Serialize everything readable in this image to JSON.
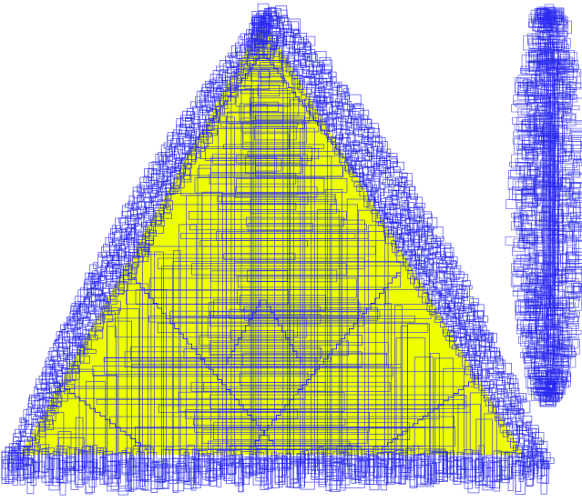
{
  "figure": {
    "colors": {
      "background": "#ffffff",
      "fill": "#eeff00",
      "outline": "#2a2af0"
    },
    "shapes": [
      {
        "name": "triangle-with-boxes",
        "fill_color": "#eeff00",
        "box_color": "#2a2af0"
      },
      {
        "name": "ellipse-of-boxes",
        "box_color": "#2a2af0"
      }
    ]
  }
}
